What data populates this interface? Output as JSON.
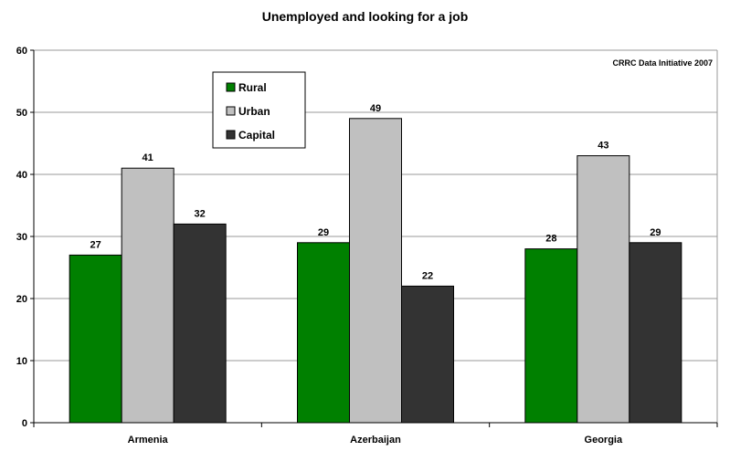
{
  "chart_data": {
    "type": "bar",
    "title": "Unemployed and looking for a job",
    "annotation": "CRRC Data Initiative 2007",
    "categories": [
      "Armenia",
      "Azerbaijan",
      "Georgia"
    ],
    "series": [
      {
        "name": "Rural",
        "color": "#008000",
        "values": [
          27,
          29,
          28
        ]
      },
      {
        "name": "Urban",
        "color": "#c0c0c0",
        "values": [
          41,
          49,
          43
        ]
      },
      {
        "name": "Capital",
        "color": "#333333",
        "values": [
          32,
          22,
          29
        ]
      }
    ],
    "ylim": [
      0,
      60
    ],
    "yticks": [
      0,
      10,
      20,
      30,
      40,
      50,
      60
    ],
    "grid": true,
    "legend_position": "top-left"
  }
}
